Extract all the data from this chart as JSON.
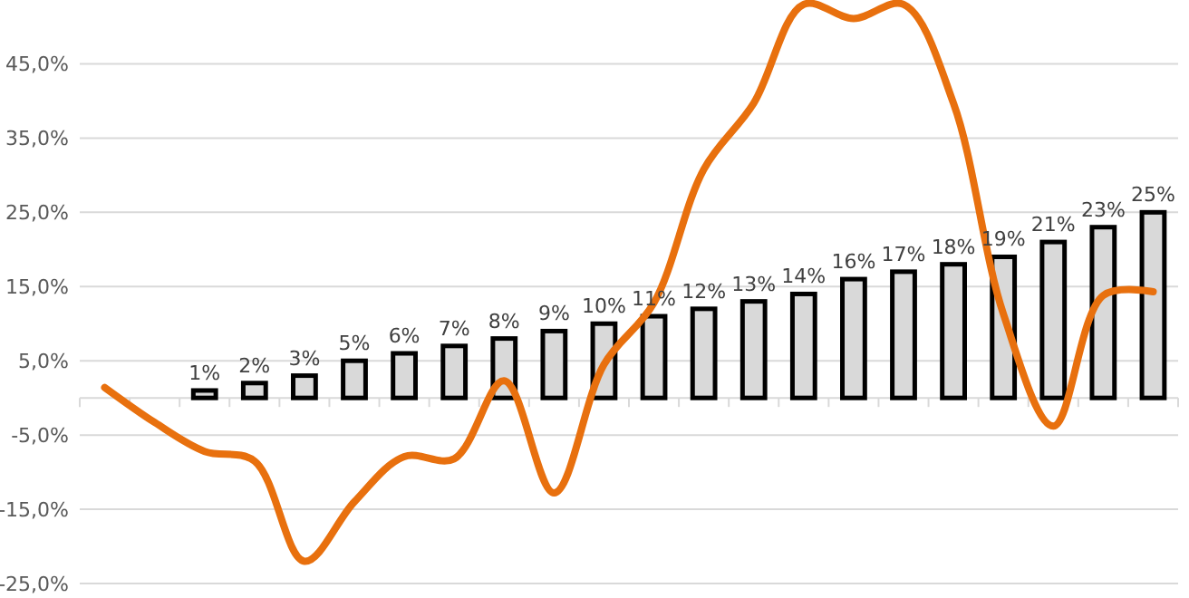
{
  "chart_data": {
    "type": "bar",
    "categories": [
      null,
      null,
      null,
      null,
      null,
      null,
      null,
      null,
      null,
      null,
      null,
      null,
      null,
      null,
      null,
      null,
      null,
      null,
      null,
      null,
      null,
      null
    ],
    "series": [
      {
        "color": "#d9d9d9",
        "values": [
          null,
          null,
          1,
          2,
          3,
          5,
          6,
          7,
          8,
          9,
          10,
          11,
          12,
          13,
          14,
          16,
          17,
          18,
          19,
          21,
          23,
          25
        ],
        "value_labels": [
          null,
          null,
          "1%",
          "2%",
          "3%",
          "5%",
          "6%",
          "7%",
          "8%",
          "9%",
          "10%",
          "11%",
          "12%",
          "13%",
          "14%",
          "16%",
          "17%",
          "18%",
          "19%",
          "21%",
          "23%",
          "25%"
        ]
      },
      {
        "type": "line",
        "color": "#e8700e",
        "values": [
          1.4,
          -3.3,
          -7.2,
          -8.5,
          -22,
          -14,
          -7.9,
          -8.2,
          2.3,
          -12.8,
          4.5,
          12.8,
          30.8,
          39.7,
          53,
          51.1,
          53,
          39.7,
          11.3,
          -3.8,
          13.8,
          14.3
        ]
      }
    ],
    "ylim": [
      -25,
      53.6
    ],
    "yticks": [
      {
        "value": -25,
        "label": "-25,0%"
      },
      {
        "value": -15,
        "label": "-15,0%"
      },
      {
        "value": -5,
        "label": "-5,0%"
      },
      {
        "value": 5,
        "label": "5,0%"
      },
      {
        "value": 15,
        "label": "15,0%"
      },
      {
        "value": 25,
        "label": "25,0%"
      },
      {
        "value": 35,
        "label": "35,0%"
      },
      {
        "value": 45,
        "label": "45,0%"
      }
    ],
    "grid": true,
    "marker": "none",
    "line_style": "solid"
  }
}
